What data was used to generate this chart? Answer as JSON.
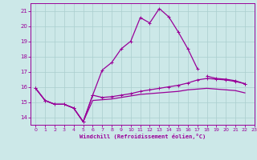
{
  "xlabel": "Windchill (Refroidissement éolien,°C)",
  "background_color": "#cce8e8",
  "grid_color": "#aacece",
  "line_color": "#990099",
  "xlim": [
    -0.5,
    23
  ],
  "ylim": [
    13.5,
    21.5
  ],
  "yticks": [
    14,
    15,
    16,
    17,
    18,
    19,
    20,
    21
  ],
  "xticks": [
    0,
    1,
    2,
    3,
    4,
    5,
    6,
    7,
    8,
    9,
    10,
    11,
    12,
    13,
    14,
    15,
    16,
    17,
    18,
    19,
    20,
    21,
    22,
    23
  ],
  "x": [
    0,
    1,
    2,
    3,
    4,
    5,
    6,
    7,
    8,
    9,
    10,
    11,
    12,
    13,
    14,
    15,
    16,
    17,
    18,
    19,
    20,
    21,
    22,
    23
  ],
  "line1": [
    15.9,
    15.1,
    14.85,
    14.85,
    14.6,
    13.7,
    15.45,
    17.1,
    17.6,
    18.5,
    19.0,
    20.55,
    20.2,
    21.15,
    20.6,
    19.6,
    18.5,
    17.2,
    null,
    null,
    null,
    null,
    null,
    null
  ],
  "line2": [
    15.9,
    15.1,
    14.85,
    14.85,
    14.6,
    13.7,
    15.45,
    15.3,
    15.35,
    15.45,
    15.55,
    15.7,
    15.8,
    15.9,
    16.0,
    16.1,
    16.25,
    16.45,
    16.55,
    16.5,
    16.45,
    16.35,
    16.2,
    null
  ],
  "line3": [
    15.9,
    15.1,
    14.85,
    14.85,
    14.6,
    13.7,
    15.1,
    15.15,
    15.2,
    15.3,
    15.4,
    15.5,
    15.55,
    15.6,
    15.65,
    15.7,
    15.8,
    15.85,
    15.9,
    15.85,
    15.8,
    15.75,
    15.6,
    null
  ],
  "line4": [
    null,
    null,
    null,
    null,
    null,
    null,
    null,
    null,
    null,
    null,
    null,
    null,
    null,
    null,
    null,
    null,
    null,
    null,
    16.7,
    16.55,
    16.5,
    16.4,
    16.2,
    null
  ]
}
